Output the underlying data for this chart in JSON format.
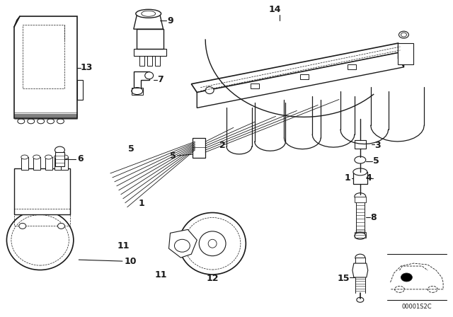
{
  "bg_color": "#ffffff",
  "line_color": "#1a1a1a",
  "diagram_code": "00001S2C",
  "fig_w": 6.4,
  "fig_h": 4.48,
  "dpi": 100
}
